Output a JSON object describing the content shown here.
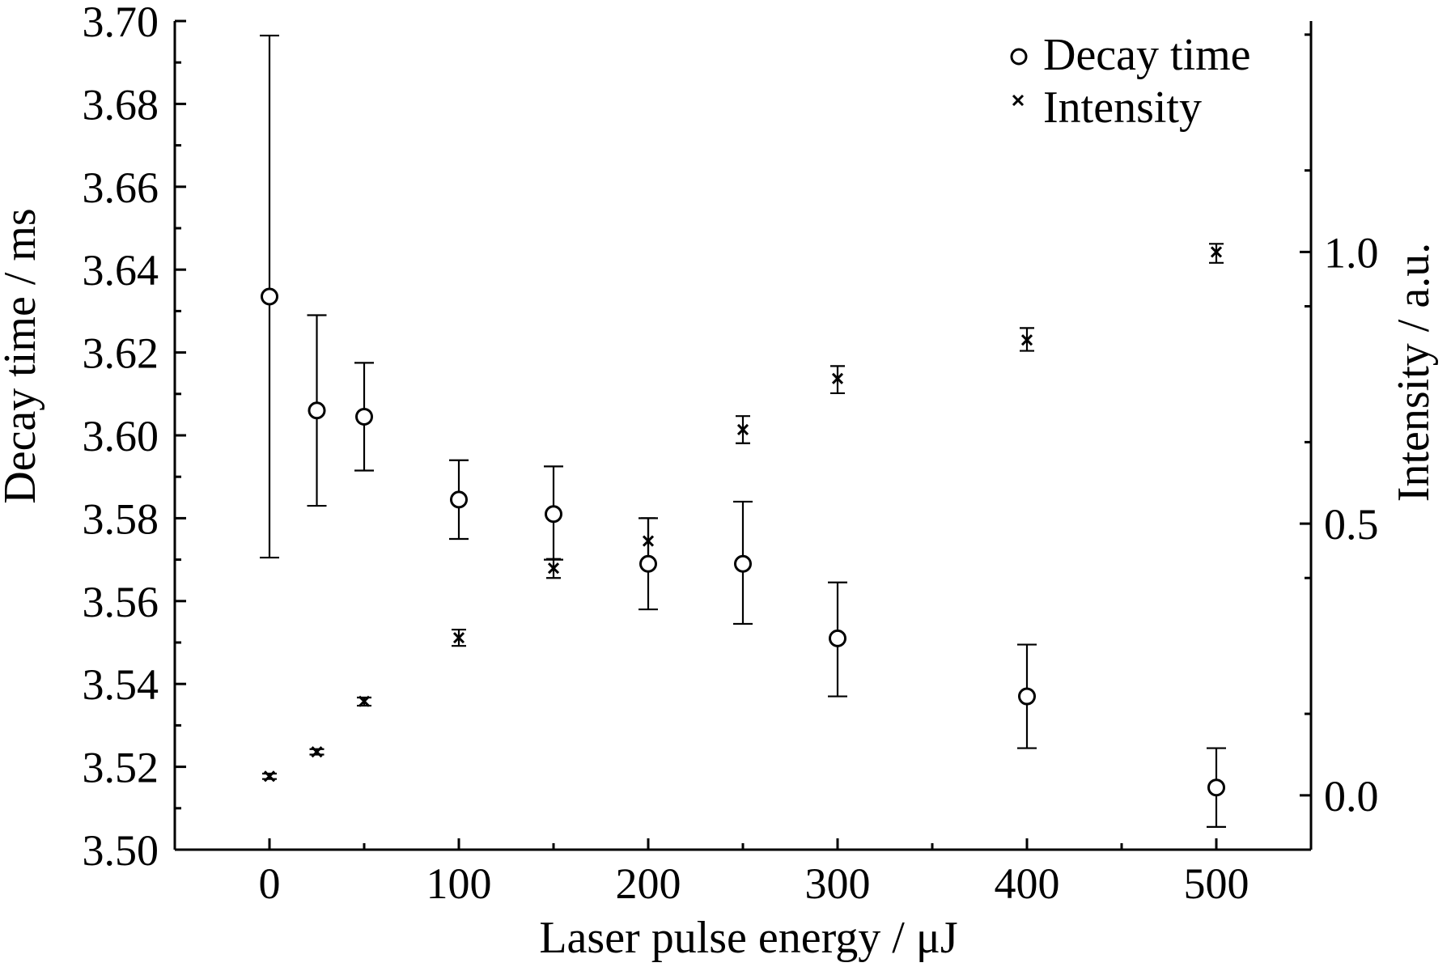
{
  "chart_data": {
    "type": "scatter",
    "xlabel": "Laser pulse energy / μJ",
    "ylabel_left": "Decay time / ms",
    "ylabel_right": "Intensity / a.u.",
    "xlim": [
      -50,
      550
    ],
    "ylim_left": [
      3.5,
      3.7
    ],
    "ylim_right": [
      -0.1,
      1.425
    ],
    "x_ticks": [
      "0",
      "100",
      "200",
      "300",
      "400",
      "500"
    ],
    "y_left_ticks": [
      "3.50",
      "3.52",
      "3.54",
      "3.56",
      "3.58",
      "3.60",
      "3.62",
      "3.64",
      "3.66",
      "3.68",
      "3.70"
    ],
    "y_right_ticks": [
      "0.0",
      "0.5",
      "1.0"
    ],
    "grid": false,
    "legend_position": "top-right",
    "series": [
      {
        "name": "Decay time",
        "axis": "left",
        "marker": "circle",
        "x": [
          0,
          25,
          50,
          100,
          150,
          200,
          250,
          300,
          400,
          500
        ],
        "y": [
          3.6335,
          3.606,
          3.6045,
          3.5845,
          3.581,
          3.569,
          3.569,
          3.551,
          3.537,
          3.515
        ],
        "err_low": [
          3.5705,
          3.583,
          3.5915,
          3.575,
          3.57,
          3.558,
          3.5545,
          3.537,
          3.5245,
          3.5055
        ],
        "err_high": [
          3.6965,
          3.629,
          3.6175,
          3.594,
          3.5925,
          3.58,
          3.584,
          3.5645,
          3.5495,
          3.5245
        ]
      },
      {
        "name": "Intensity",
        "axis": "right",
        "marker": "x",
        "x": [
          0,
          25,
          50,
          100,
          150,
          200,
          250,
          300,
          400,
          500
        ],
        "y": [
          0.035,
          0.08,
          0.173,
          0.29,
          0.418,
          0.468,
          0.673,
          0.767,
          0.838,
          1.0
        ],
        "err_low": [
          0.03,
          0.075,
          0.165,
          0.275,
          0.4,
          0.42,
          0.648,
          0.74,
          0.818,
          0.98
        ],
        "err_high": [
          0.04,
          0.085,
          0.18,
          0.305,
          0.435,
          0.51,
          0.698,
          0.79,
          0.86,
          1.015
        ]
      }
    ]
  }
}
